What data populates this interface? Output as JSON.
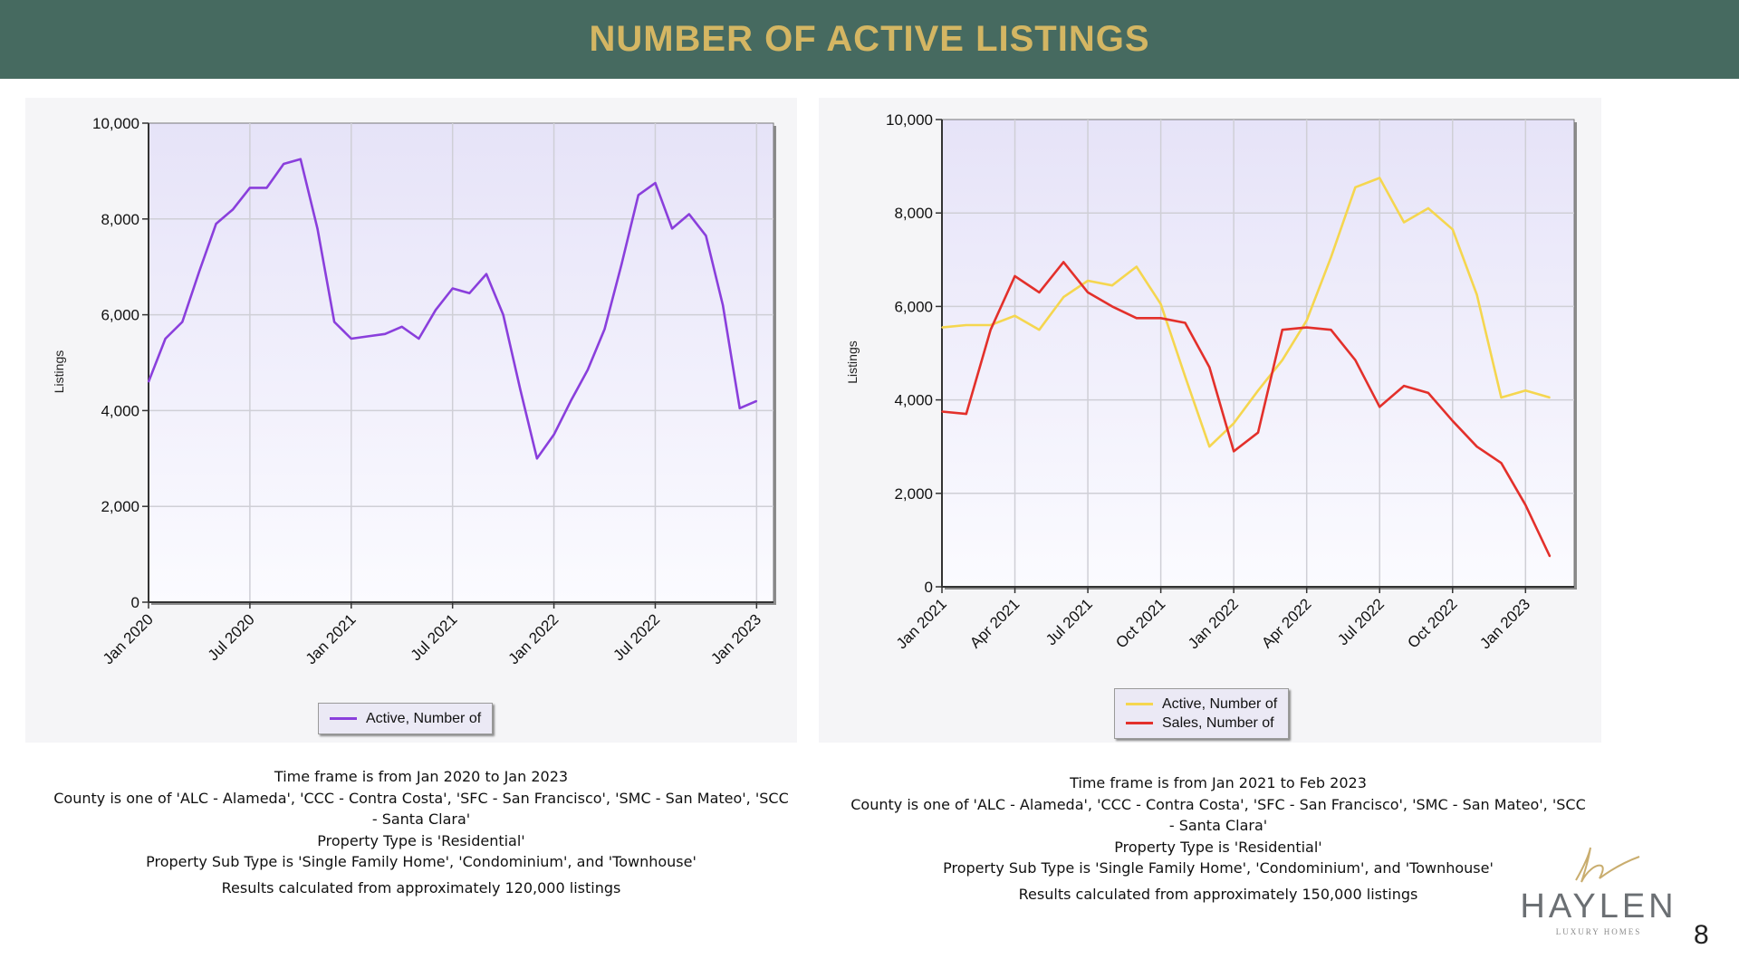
{
  "header": {
    "title": "NUMBER OF ACTIVE LISTINGS"
  },
  "colors": {
    "banner": "#466a60",
    "title": "#d4b663",
    "active_left": "#8a3fdc",
    "active_right": "#f5d64f",
    "sales": "#e3302b"
  },
  "chart_data": [
    {
      "type": "line",
      "ylabel": "Listings",
      "ylim": [
        0,
        10000
      ],
      "yticks": [
        "0",
        "2,000",
        "4,000",
        "6,000",
        "8,000",
        "10,000"
      ],
      "xlim": [
        "2020-01",
        "2023-02"
      ],
      "xticks": [
        {
          "label": "Jan 2020",
          "date": "2020-01"
        },
        {
          "label": "Jul 2020",
          "date": "2020-07"
        },
        {
          "label": "Jan 2021",
          "date": "2021-01"
        },
        {
          "label": "Jul 2021",
          "date": "2021-07"
        },
        {
          "label": "Jan 2022",
          "date": "2022-01"
        },
        {
          "label": "Jul 2022",
          "date": "2022-07"
        },
        {
          "label": "Jan 2023",
          "date": "2023-01"
        }
      ],
      "grid": true,
      "legend_position": "bottom-center",
      "series": [
        {
          "name": "Active, Number of",
          "color": "#8a3fdc",
          "points": [
            [
              "2020-01",
              4600
            ],
            [
              "2020-02",
              5500
            ],
            [
              "2020-03",
              5850
            ],
            [
              "2020-04",
              6900
            ],
            [
              "2020-05",
              7900
            ],
            [
              "2020-06",
              8200
            ],
            [
              "2020-07",
              8650
            ],
            [
              "2020-08",
              8650
            ],
            [
              "2020-09",
              9150
            ],
            [
              "2020-10",
              9250
            ],
            [
              "2020-11",
              7800
            ],
            [
              "2020-12",
              5850
            ],
            [
              "2021-01",
              5500
            ],
            [
              "2021-02",
              5550
            ],
            [
              "2021-03",
              5600
            ],
            [
              "2021-04",
              5750
            ],
            [
              "2021-05",
              5500
            ],
            [
              "2021-06",
              6100
            ],
            [
              "2021-07",
              6550
            ],
            [
              "2021-08",
              6450
            ],
            [
              "2021-09",
              6850
            ],
            [
              "2021-10",
              6000
            ],
            [
              "2021-11",
              4450
            ],
            [
              "2021-12",
              3000
            ],
            [
              "2022-01",
              3500
            ],
            [
              "2022-02",
              4200
            ],
            [
              "2022-03",
              4850
            ],
            [
              "2022-04",
              5700
            ],
            [
              "2022-05",
              7050
            ],
            [
              "2022-06",
              8500
            ],
            [
              "2022-07",
              8750
            ],
            [
              "2022-08",
              7800
            ],
            [
              "2022-09",
              8100
            ],
            [
              "2022-10",
              7650
            ],
            [
              "2022-11",
              6200
            ],
            [
              "2022-12",
              4050
            ],
            [
              "2023-01",
              4200
            ]
          ]
        }
      ]
    },
    {
      "type": "line",
      "ylabel": "Listings",
      "ylim": [
        0,
        10000
      ],
      "yticks": [
        "0",
        "2,000",
        "4,000",
        "6,000",
        "8,000",
        "10,000"
      ],
      "xlim": [
        "2021-01",
        "2023-03"
      ],
      "xticks": [
        {
          "label": "Jan 2021",
          "date": "2021-01"
        },
        {
          "label": "Apr 2021",
          "date": "2021-04"
        },
        {
          "label": "Jul 2021",
          "date": "2021-07"
        },
        {
          "label": "Oct 2021",
          "date": "2021-10"
        },
        {
          "label": "Jan 2022",
          "date": "2022-01"
        },
        {
          "label": "Apr 2022",
          "date": "2022-04"
        },
        {
          "label": "Jul 2022",
          "date": "2022-07"
        },
        {
          "label": "Oct 2022",
          "date": "2022-10"
        },
        {
          "label": "Jan 2023",
          "date": "2023-01"
        }
      ],
      "grid": true,
      "legend_position": "bottom-center",
      "series": [
        {
          "name": "Active, Number of",
          "color": "#f5d64f",
          "points": [
            [
              "2021-01",
              5550
            ],
            [
              "2021-02",
              5600
            ],
            [
              "2021-03",
              5600
            ],
            [
              "2021-04",
              5800
            ],
            [
              "2021-05",
              5500
            ],
            [
              "2021-06",
              6200
            ],
            [
              "2021-07",
              6550
            ],
            [
              "2021-08",
              6450
            ],
            [
              "2021-09",
              6850
            ],
            [
              "2021-10",
              6050
            ],
            [
              "2021-11",
              4500
            ],
            [
              "2021-12",
              3000
            ],
            [
              "2022-01",
              3500
            ],
            [
              "2022-02",
              4200
            ],
            [
              "2022-03",
              4850
            ],
            [
              "2022-04",
              5700
            ],
            [
              "2022-05",
              7050
            ],
            [
              "2022-06",
              8550
            ],
            [
              "2022-07",
              8750
            ],
            [
              "2022-08",
              7800
            ],
            [
              "2022-09",
              8100
            ],
            [
              "2022-10",
              7650
            ],
            [
              "2022-11",
              6250
            ],
            [
              "2022-12",
              4050
            ],
            [
              "2023-01",
              4200
            ],
            [
              "2023-02",
              4050
            ]
          ]
        },
        {
          "name": "Sales, Number of",
          "color": "#e3302b",
          "points": [
            [
              "2021-01",
              3750
            ],
            [
              "2021-02",
              3700
            ],
            [
              "2021-03",
              5500
            ],
            [
              "2021-04",
              6650
            ],
            [
              "2021-05",
              6300
            ],
            [
              "2021-06",
              6950
            ],
            [
              "2021-07",
              6300
            ],
            [
              "2021-08",
              6000
            ],
            [
              "2021-09",
              5750
            ],
            [
              "2021-10",
              5750
            ],
            [
              "2021-11",
              5650
            ],
            [
              "2021-12",
              4700
            ],
            [
              "2022-01",
              2900
            ],
            [
              "2022-02",
              3300
            ],
            [
              "2022-03",
              5500
            ],
            [
              "2022-04",
              5550
            ],
            [
              "2022-05",
              5500
            ],
            [
              "2022-06",
              4850
            ],
            [
              "2022-07",
              3850
            ],
            [
              "2022-08",
              4300
            ],
            [
              "2022-09",
              4150
            ],
            [
              "2022-10",
              3550
            ],
            [
              "2022-11",
              3000
            ],
            [
              "2022-12",
              2650
            ],
            [
              "2023-01",
              1750
            ],
            [
              "2023-02",
              650
            ]
          ]
        }
      ]
    }
  ],
  "captions": [
    {
      "lines": [
        "Time frame is from Jan 2020 to Jan 2023",
        "County is one of 'ALC - Alameda', 'CCC - Contra Costa', 'SFC - San Francisco', 'SMC - San Mateo', 'SCC",
        "- Santa Clara'",
        "Property Type is 'Residential'",
        "Property Sub Type is 'Single Family Home', 'Condominium', and 'Townhouse'"
      ],
      "last": "Results calculated from approximately 120,000 listings"
    },
    {
      "lines": [
        "Time frame is from Jan 2021 to Feb 2023",
        "County is one of 'ALC - Alameda', 'CCC - Contra Costa', 'SFC - San Francisco', 'SMC - San Mateo', 'SCC",
        "- Santa Clara'",
        "Property Type is 'Residential'",
        "Property Sub Type is 'Single Family Home', 'Condominium', and 'Townhouse'"
      ],
      "last": "Results calculated from approximately 150,000 listings"
    }
  ],
  "brand": {
    "name": "HAYLEN",
    "tagline": "LUXURY HOMES"
  },
  "page_number": "8"
}
